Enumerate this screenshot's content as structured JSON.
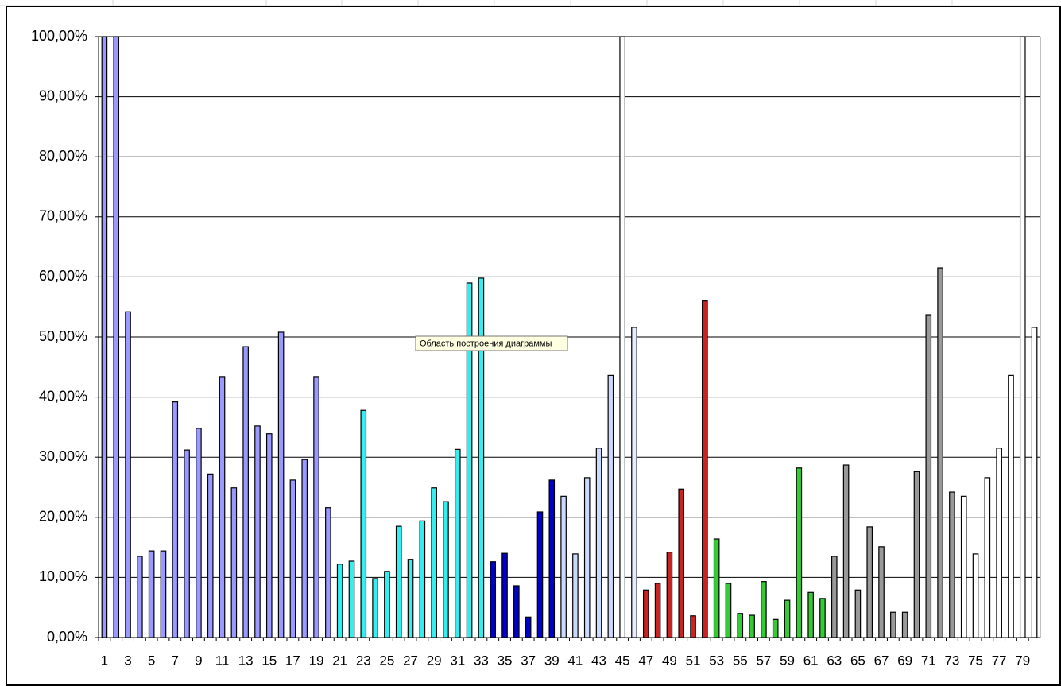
{
  "chart_data": {
    "type": "bar",
    "tooltip": "Область построения диаграммы",
    "categories": [
      "1",
      null,
      "3",
      null,
      "5",
      null,
      "7",
      null,
      "9",
      null,
      "11",
      null,
      "13",
      null,
      "15",
      null,
      "17",
      null,
      "19",
      null,
      "21",
      null,
      "23",
      null,
      "25",
      null,
      "27",
      null,
      "29",
      null,
      "31",
      null,
      "33",
      null,
      "35",
      null,
      "37",
      null,
      "39",
      null,
      "41",
      null,
      "43",
      null,
      "45",
      null,
      "47",
      null,
      "49",
      null,
      "51",
      null,
      "53",
      null,
      "55",
      null,
      "57",
      null,
      "59",
      null,
      "61",
      null,
      "63",
      null,
      "65",
      null,
      "67",
      null,
      "69",
      null,
      "71",
      null,
      "73",
      null,
      "75",
      null,
      "77",
      null,
      "79",
      null
    ],
    "values": [
      100,
      100,
      54.2,
      13.5,
      14.4,
      14.4,
      39.2,
      31.2,
      34.8,
      27.2,
      43.4,
      24.9,
      48.4,
      35.2,
      33.9,
      50.8,
      26.2,
      29.6,
      43.4,
      21.6,
      12.2,
      12.7,
      37.8,
      9.8,
      11.0,
      18.5,
      13.0,
      19.4,
      24.9,
      22.6,
      31.3,
      59.0,
      59.8,
      12.6,
      14.0,
      8.6,
      3.4,
      20.9,
      26.2,
      23.5,
      13.9,
      26.6,
      31.5,
      43.6,
      100,
      51.6,
      7.9,
      9.0,
      14.2,
      24.7,
      3.6,
      56.0,
      16.4,
      9.0,
      4.0,
      3.7,
      9.3,
      3.0,
      6.2,
      28.2,
      7.5,
      6.5,
      13.5,
      28.7,
      7.9,
      18.4,
      15.1,
      4.2,
      4.2,
      27.6,
      53.7,
      61.5,
      24.2,
      23.5,
      13.9,
      26.6,
      31.5,
      43.6,
      100,
      51.6
    ],
    "colors": [
      "#9999ff",
      "#9999ff",
      "#9999ff",
      "#9999ff",
      "#9999ff",
      "#9999ff",
      "#9999ff",
      "#9999ff",
      "#9999ff",
      "#9999ff",
      "#9999ff",
      "#9999ff",
      "#9999ff",
      "#9999ff",
      "#9999ff",
      "#9999ff",
      "#9999ff",
      "#9999ff",
      "#9999ff",
      "#9999ff",
      "#33eeee",
      "#33eeee",
      "#33eeee",
      "#33eeee",
      "#33eeee",
      "#33eeee",
      "#33eeee",
      "#33eeee",
      "#33eeee",
      "#33eeee",
      "#33eeee",
      "#33eeee",
      "#33eeee",
      "#0000cc",
      "#0000cc",
      "#0000cc",
      "#0000cc",
      "#0000cc",
      "#0000cc",
      "#ccd9ff",
      "#ccd9ff",
      "#ccd9ff",
      "#ccd9ff",
      "#ccd9ff",
      "#ffffff",
      "#e6ecff",
      "#cc2222",
      "#cc2222",
      "#cc2222",
      "#cc2222",
      "#cc2222",
      "#cc2222",
      "#33cc33",
      "#33cc33",
      "#33cc33",
      "#33cc33",
      "#33cc33",
      "#33cc33",
      "#33cc33",
      "#33cc33",
      "#33cc33",
      "#33cc33",
      "#999999",
      "#999999",
      "#999999",
      "#999999",
      "#999999",
      "#999999",
      "#999999",
      "#999999",
      "#999999",
      "#999999",
      "#999999",
      "#ffffff",
      "#ffffff",
      "#ffffff",
      "#ffffff",
      "#ffffff",
      "#ffffff",
      "#ffffff"
    ],
    "ylim": [
      0,
      100
    ],
    "yticks": [
      {
        "value": 0,
        "label": "0,00%"
      },
      {
        "value": 10,
        "label": "10,00%"
      },
      {
        "value": 20,
        "label": "20,00%"
      },
      {
        "value": 30,
        "label": "30,00%"
      },
      {
        "value": 40,
        "label": "40,00%"
      },
      {
        "value": 50,
        "label": "50,00%"
      },
      {
        "value": 60,
        "label": "60,00%"
      },
      {
        "value": 70,
        "label": "70,00%"
      },
      {
        "value": 80,
        "label": "80,00%"
      },
      {
        "value": 90,
        "label": "90,00%"
      },
      {
        "value": 100,
        "label": "100,00%"
      }
    ],
    "grid": true
  }
}
